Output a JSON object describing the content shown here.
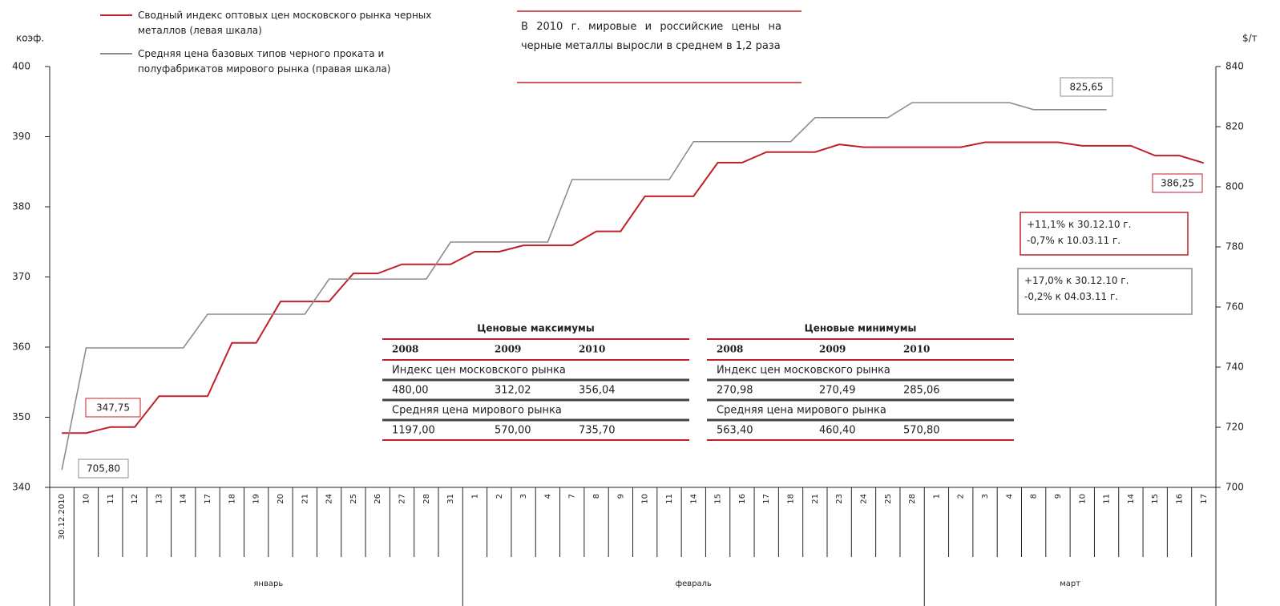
{
  "chart_data": {
    "type": "line",
    "y_label": "коэф.",
    "y2_label": "$/т",
    "groups": [
      {
        "label": null,
        "categories": [
          "30.12.2010"
        ]
      },
      {
        "label": "январь",
        "categories": [
          "10",
          "11",
          "12",
          "13",
          "14",
          "17",
          "18",
          "19",
          "20",
          "21",
          "24",
          "25",
          "26",
          "27",
          "28",
          "31"
        ]
      },
      {
        "label": "февраль",
        "categories": [
          "1",
          "2",
          "3",
          "4",
          "7",
          "8",
          "9",
          "10",
          "11",
          "14",
          "15",
          "16",
          "17",
          "18",
          "21",
          "23",
          "24",
          "25",
          "28"
        ]
      },
      {
        "label": "март",
        "categories": [
          "1",
          "2",
          "3",
          "4",
          "8",
          "9",
          "10",
          "11",
          "14",
          "15",
          "16",
          "17"
        ]
      }
    ],
    "series": [
      {
        "name": "Сводный индекс оптовых цен московского рынка черных металлов (левая шкала)",
        "color": "#c0202a",
        "axis": "y",
        "values": [
          347.75,
          347.75,
          348.6,
          348.6,
          353,
          353,
          353,
          360.6,
          360.6,
          366.5,
          366.5,
          366.5,
          370.5,
          370.5,
          371.8,
          371.8,
          371.8,
          373.6,
          373.6,
          374.5,
          374.5,
          374.5,
          376.5,
          376.5,
          381.5,
          381.5,
          381.5,
          386.3,
          386.3,
          387.8,
          387.8,
          387.8,
          388.9,
          388.5,
          388.5,
          388.5,
          388.5,
          388.5,
          389.2,
          389.2,
          389.2,
          389.2,
          388.7,
          388.7,
          388.7,
          387.3,
          387.3,
          386.25
        ]
      },
      {
        "name": "Средняя цена базовых типов черного проката и полуфабрикатов мирового рынка (правая шкала)",
        "color": "#8c8c8c",
        "axis": "y2",
        "values": [
          705.8,
          746.4,
          746.4,
          746.4,
          746.4,
          746.4,
          757.6,
          757.6,
          757.6,
          757.6,
          757.6,
          769.3,
          769.3,
          769.3,
          769.3,
          769.3,
          781.6,
          781.6,
          781.6,
          781.6,
          781.6,
          802.4,
          802.4,
          802.4,
          802.4,
          802.4,
          815,
          815,
          815,
          815,
          815,
          823,
          823,
          823,
          823,
          828,
          828,
          828,
          828,
          828,
          825.65,
          825.65,
          825.65,
          825.65,
          null,
          null,
          null,
          null
        ]
      }
    ],
    "ylim": [
      340,
      400
    ],
    "yticks": [
      340,
      350,
      360,
      370,
      380,
      390,
      400
    ],
    "y2lim": [
      700,
      840
    ],
    "y2ticks": [
      700,
      720,
      740,
      760,
      780,
      800,
      820,
      840
    ],
    "annotations": [
      "347,75",
      "705,80",
      "825,65",
      "386,25"
    ],
    "notes": [
      {
        "lines": [
          "В 2010 г. мировые и российские цены на черные металлы выросли в среднем в 1,2 раза"
        ]
      },
      {
        "lines": [
          "+11,1% к 30.12.10 г.",
          "-0,7% к 10.03.11 г."
        ]
      },
      {
        "lines": [
          "+17,0% к 30.12.10 г.",
          "-0,2% к 04.03.11 г."
        ]
      }
    ],
    "tables": [
      {
        "title": "Ценовые максимумы",
        "header": [
          "2008",
          "2009",
          "2010"
        ],
        "rows": [
          {
            "label": "Индекс цен московского рынка",
            "values": [
              "480,00",
              "312,02",
              "356,04"
            ]
          },
          {
            "label": "Средняя цена мирового рынка",
            "values": [
              "1197,00",
              "570,00",
              "735,70"
            ]
          }
        ]
      },
      {
        "title": "Ценовые минимумы",
        "header": [
          "2008",
          "2009",
          "2010"
        ],
        "rows": [
          {
            "label": "Индекс цен московского рынка",
            "values": [
              "270,98",
              "270,49",
              "285,06"
            ]
          },
          {
            "label": "Средняя цена мирового рынка",
            "values": [
              "563,40",
              "460,40",
              "570,80"
            ]
          }
        ]
      }
    ]
  }
}
